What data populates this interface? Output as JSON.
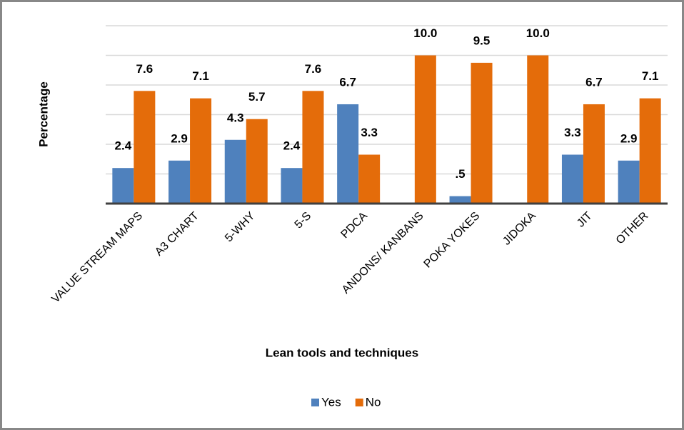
{
  "chart_data": {
    "type": "bar",
    "x_label": "Lean tools and techniques",
    "y_label": "Percentage",
    "categories": [
      "VALUE STREAM MAPS",
      "A3 CHART",
      "5-WHY",
      "5-S",
      "PDCA",
      "ANDONS/ KANBANS",
      "POKA YOKES",
      "JIDOKA",
      "JIT",
      "OTHER"
    ],
    "series": [
      {
        "name": "Yes",
        "color": "#4f81bd",
        "values": [
          2.4,
          2.9,
          4.3,
          2.4,
          6.7,
          null,
          0.5,
          null,
          3.3,
          2.9
        ],
        "value_labels": [
          "2.4",
          "2.9",
          "4.3",
          "2.4",
          "6.7",
          null,
          ".5",
          null,
          "3.3",
          "2.9"
        ]
      },
      {
        "name": "No",
        "color": "#e46c0a",
        "values": [
          7.6,
          7.1,
          5.7,
          7.6,
          3.3,
          10.0,
          9.5,
          10.0,
          6.7,
          7.1
        ],
        "value_labels": [
          "7.6",
          "7.1",
          "5.7",
          "7.6",
          "3.3",
          "10.0",
          "9.5",
          "10.0",
          "6.7",
          "7.1"
        ]
      }
    ],
    "ylim": [
      0,
      12
    ],
    "yticks": [
      0,
      2,
      4,
      6,
      8,
      10,
      12
    ],
    "grid": true,
    "legend": "bottom"
  }
}
